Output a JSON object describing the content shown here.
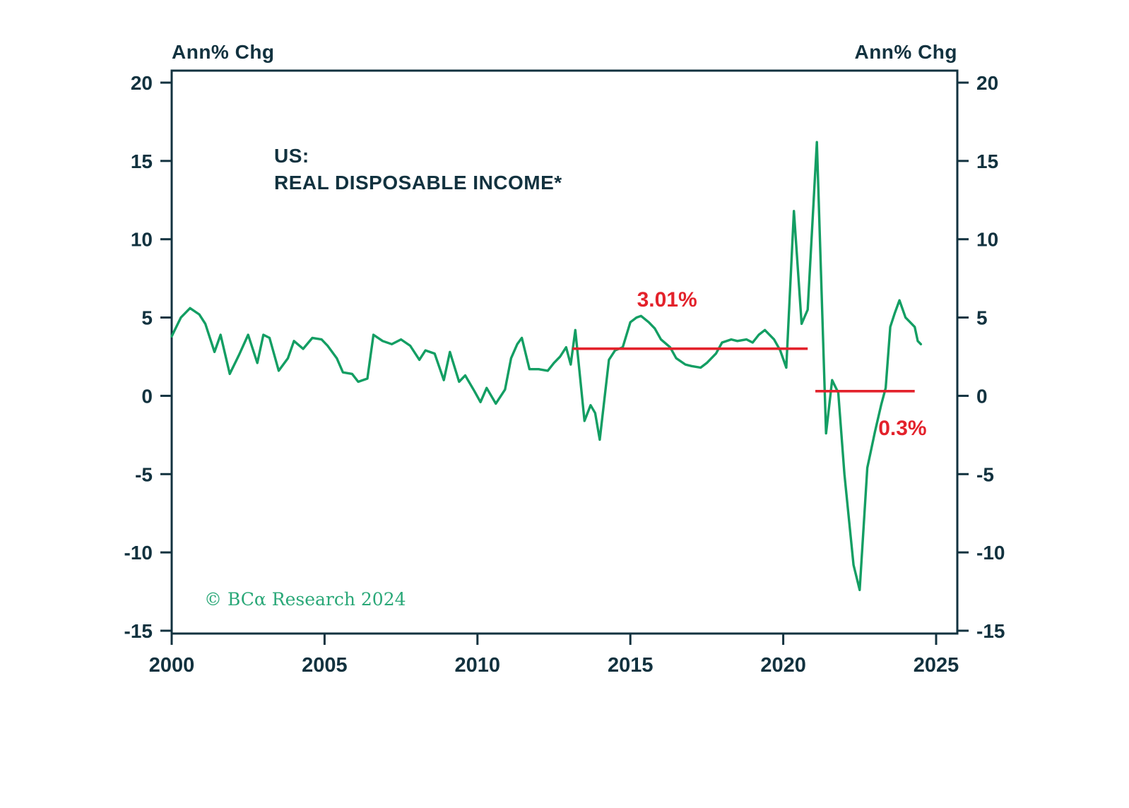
{
  "axis_titles": {
    "left": "Ann% Chg",
    "right": "Ann% Chg"
  },
  "chart_title": {
    "line1": "US:",
    "line2": "REAL DISPOSABLE INCOME*"
  },
  "copyright": "© BCα Research 2024",
  "colors": {
    "ink": "#12323f",
    "series": "#139e63",
    "reference": "#e3222b",
    "copyright": "#2aa878",
    "background": "#ffffff"
  },
  "chart_data": {
    "type": "line",
    "title": "US: REAL DISPOSABLE INCOME*",
    "ylabel_left": "Ann% Chg",
    "ylabel_right": "Ann% Chg",
    "xlim": [
      2000,
      2025.7
    ],
    "ylim": [
      -15.2,
      20.8
    ],
    "grid": false,
    "legend": "none",
    "yticks": [
      20,
      15,
      10,
      5,
      0,
      -5,
      -10,
      -15
    ],
    "xticks": [
      2000,
      2005,
      2010,
      2015,
      2020,
      2025
    ],
    "series": [
      {
        "name": "US Real Disposable Income (Ann% Chg)",
        "color": "#139e63",
        "points": [
          [
            2000.0,
            3.8
          ],
          [
            2000.3,
            5.0
          ],
          [
            2000.6,
            5.6
          ],
          [
            2000.9,
            5.2
          ],
          [
            2001.1,
            4.6
          ],
          [
            2001.4,
            2.8
          ],
          [
            2001.6,
            3.9
          ],
          [
            2001.9,
            1.4
          ],
          [
            2002.2,
            2.6
          ],
          [
            2002.5,
            3.9
          ],
          [
            2002.8,
            2.1
          ],
          [
            2003.0,
            3.9
          ],
          [
            2003.2,
            3.7
          ],
          [
            2003.5,
            1.6
          ],
          [
            2003.8,
            2.4
          ],
          [
            2004.0,
            3.5
          ],
          [
            2004.3,
            3.0
          ],
          [
            2004.6,
            3.7
          ],
          [
            2004.9,
            3.6
          ],
          [
            2005.1,
            3.2
          ],
          [
            2005.4,
            2.4
          ],
          [
            2005.6,
            1.5
          ],
          [
            2005.9,
            1.4
          ],
          [
            2006.1,
            0.9
          ],
          [
            2006.4,
            1.1
          ],
          [
            2006.6,
            3.9
          ],
          [
            2006.9,
            3.5
          ],
          [
            2007.2,
            3.3
          ],
          [
            2007.5,
            3.6
          ],
          [
            2007.8,
            3.2
          ],
          [
            2008.1,
            2.3
          ],
          [
            2008.3,
            2.9
          ],
          [
            2008.6,
            2.7
          ],
          [
            2008.9,
            1.0
          ],
          [
            2009.1,
            2.8
          ],
          [
            2009.4,
            0.9
          ],
          [
            2009.6,
            1.3
          ],
          [
            2009.9,
            0.3
          ],
          [
            2010.1,
            -0.4
          ],
          [
            2010.3,
            0.5
          ],
          [
            2010.6,
            -0.5
          ],
          [
            2010.9,
            0.4
          ],
          [
            2011.1,
            2.4
          ],
          [
            2011.3,
            3.3
          ],
          [
            2011.45,
            3.7
          ],
          [
            2011.7,
            1.7
          ],
          [
            2012.0,
            1.7
          ],
          [
            2012.3,
            1.6
          ],
          [
            2012.5,
            2.1
          ],
          [
            2012.7,
            2.5
          ],
          [
            2012.9,
            3.1
          ],
          [
            2013.05,
            2.0
          ],
          [
            2013.2,
            4.2
          ],
          [
            2013.5,
            -1.6
          ],
          [
            2013.7,
            -0.6
          ],
          [
            2013.85,
            -1.1
          ],
          [
            2014.0,
            -2.8
          ],
          [
            2014.3,
            2.3
          ],
          [
            2014.5,
            2.9
          ],
          [
            2014.75,
            3.1
          ],
          [
            2015.0,
            4.7
          ],
          [
            2015.2,
            5.0
          ],
          [
            2015.35,
            5.1
          ],
          [
            2015.6,
            4.7
          ],
          [
            2015.8,
            4.3
          ],
          [
            2016.0,
            3.6
          ],
          [
            2016.3,
            3.1
          ],
          [
            2016.5,
            2.4
          ],
          [
            2016.8,
            2.0
          ],
          [
            2017.0,
            1.9
          ],
          [
            2017.3,
            1.8
          ],
          [
            2017.5,
            2.1
          ],
          [
            2017.8,
            2.7
          ],
          [
            2018.0,
            3.4
          ],
          [
            2018.3,
            3.6
          ],
          [
            2018.5,
            3.5
          ],
          [
            2018.8,
            3.6
          ],
          [
            2019.0,
            3.4
          ],
          [
            2019.2,
            3.9
          ],
          [
            2019.4,
            4.2
          ],
          [
            2019.7,
            3.6
          ],
          [
            2019.9,
            2.9
          ],
          [
            2020.1,
            1.8
          ],
          [
            2020.35,
            11.8
          ],
          [
            2020.6,
            4.6
          ],
          [
            2020.8,
            5.5
          ],
          [
            2021.1,
            16.2
          ],
          [
            2021.4,
            -2.4
          ],
          [
            2021.6,
            1.0
          ],
          [
            2021.8,
            0.2
          ],
          [
            2022.0,
            -5.0
          ],
          [
            2022.3,
            -10.8
          ],
          [
            2022.5,
            -12.4
          ],
          [
            2022.75,
            -4.6
          ],
          [
            2023.0,
            -2.3
          ],
          [
            2023.2,
            -0.6
          ],
          [
            2023.35,
            0.5
          ],
          [
            2023.5,
            4.4
          ],
          [
            2023.65,
            5.3
          ],
          [
            2023.8,
            6.1
          ],
          [
            2024.0,
            5.0
          ],
          [
            2024.15,
            4.7
          ],
          [
            2024.3,
            4.4
          ],
          [
            2024.4,
            3.5
          ],
          [
            2024.5,
            3.3
          ]
        ]
      }
    ],
    "reference_lines": [
      {
        "label": "3.01%",
        "value": 3.01,
        "x_start": 2013.1,
        "x_end": 2020.8,
        "label_x": 2016.2,
        "label_y": 5.7,
        "color": "#e3222b"
      },
      {
        "label": "0.3%",
        "value": 0.3,
        "x_start": 2021.05,
        "x_end": 2024.3,
        "label_x": 2023.9,
        "label_y": -2.5,
        "color": "#e3222b"
      }
    ]
  }
}
